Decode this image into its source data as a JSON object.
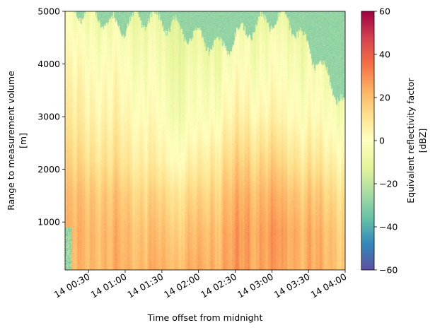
{
  "chart_data": {
    "type": "heatmap",
    "title": "",
    "xlabel": "Time offset from midnight",
    "ylabel_lines": [
      "Range to measurement volume",
      "[m]"
    ],
    "x_tick_labels": [
      "14 00:30",
      "14 01:00",
      "14 01:30",
      "14 02:00",
      "14 02:30",
      "14 03:00",
      "14 03:30",
      "14 04:00"
    ],
    "x_range_hours": [
      0.18,
      4.0
    ],
    "x_tick_hours": [
      0.5,
      1.0,
      1.5,
      2.0,
      2.5,
      3.0,
      3.5,
      4.0
    ],
    "y_ticks": [
      1000,
      2000,
      3000,
      4000,
      5000
    ],
    "y_tick_labels": [
      "1000",
      "2000",
      "3000",
      "4000",
      "5000"
    ],
    "ylim": [
      90,
      5000
    ],
    "colorbar": {
      "label_lines": [
        "Equivalent reflectivity factor",
        "[dBZ]"
      ],
      "ticks": [
        -60,
        -40,
        -20,
        0,
        20,
        40,
        60
      ],
      "tick_labels": [
        "−60",
        "−40",
        "−20",
        "0",
        "20",
        "40",
        "60"
      ],
      "range": [
        -60,
        60
      ],
      "colormap": "Spectral_r",
      "colormap_stops": [
        "#5e4fa2",
        "#3288bd",
        "#66c2a5",
        "#abdda4",
        "#e6f598",
        "#ffffbf",
        "#fee08b",
        "#fdae61",
        "#f46d43",
        "#d53e4f",
        "#9e0142"
      ]
    },
    "profile_hours": [
      0.18,
      0.5,
      0.9,
      1.3,
      1.7,
      2.0,
      2.3,
      2.6,
      2.9,
      3.2,
      3.6,
      4.0
    ],
    "echo_top_m": [
      5000,
      5000,
      4700,
      4900,
      4700,
      4500,
      4300,
      4600,
      4800,
      4900,
      4100,
      3200
    ],
    "profile_heights_m": [
      100,
      800,
      1500,
      2200,
      3000,
      3800,
      4500,
      5000
    ],
    "profiles_dbz": [
      [
        18,
        20,
        17,
        12,
        6,
        2,
        -2,
        -6
      ],
      [
        22,
        22,
        19,
        12,
        6,
        2,
        -2,
        -6
      ],
      [
        22,
        21,
        17,
        10,
        4,
        0,
        -4,
        -8
      ],
      [
        22,
        19,
        14,
        6,
        1,
        -3,
        -6,
        -10
      ],
      [
        22,
        18,
        12,
        2,
        -4,
        -7,
        -10,
        -12
      ],
      [
        23,
        19,
        13,
        4,
        -3,
        -6,
        -10,
        -13
      ],
      [
        24,
        22,
        17,
        10,
        1,
        -4,
        -8,
        -12
      ],
      [
        26,
        26,
        22,
        14,
        5,
        -1,
        -5,
        -10
      ],
      [
        27,
        27,
        23,
        15,
        5,
        -1,
        -5,
        -10
      ],
      [
        24,
        25,
        20,
        11,
        2,
        -2,
        -6,
        -11
      ],
      [
        23,
        22,
        17,
        8,
        0,
        -4,
        -8,
        -12
      ],
      [
        20,
        18,
        13,
        5,
        -2,
        -6,
        -10,
        -14
      ]
    ],
    "clear_air_dbz": -28
  }
}
